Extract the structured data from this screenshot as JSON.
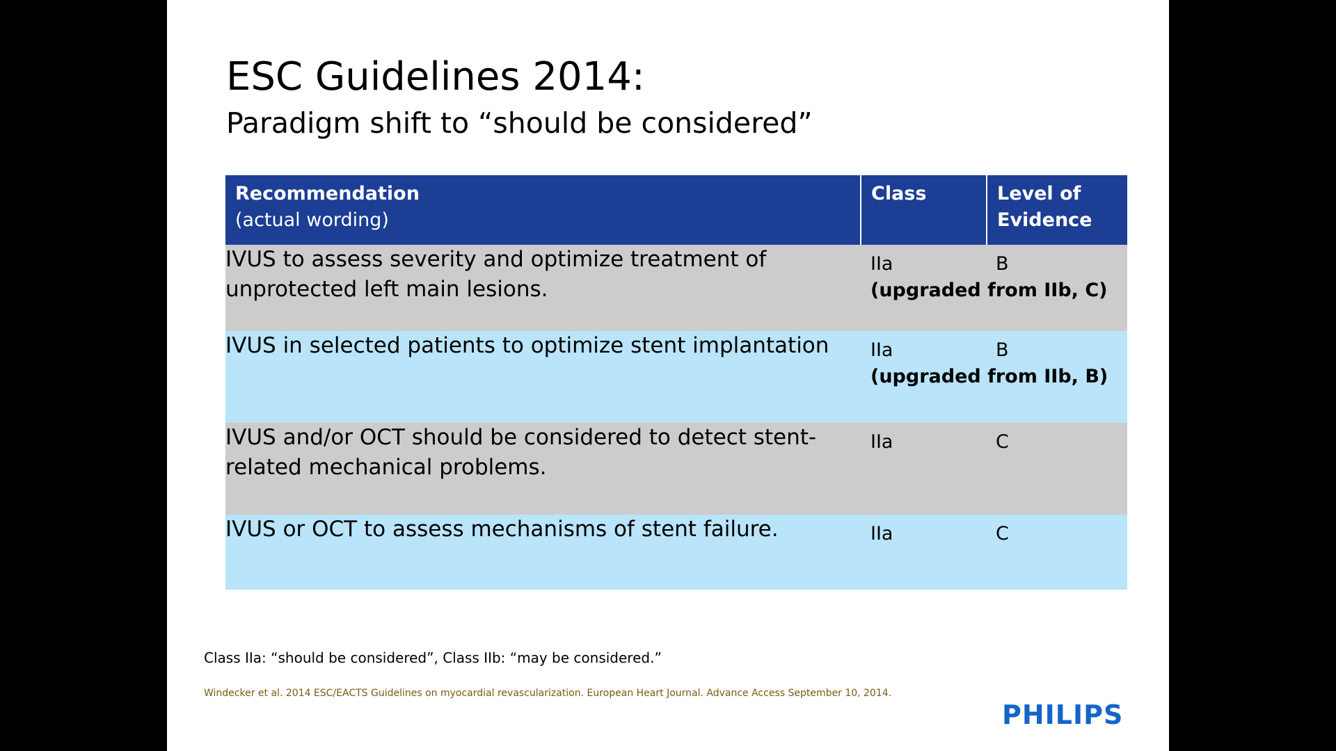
{
  "slide": {
    "title": "ESC Guidelines 2014:",
    "subtitle": "Paradigm shift to “should be considered”"
  },
  "table": {
    "headers": {
      "recommendation": "Recommendation",
      "recommendation_sub": "(actual wording)",
      "class": "Class",
      "level": "Level of Evidence"
    },
    "rows": [
      {
        "recommendation": "IVUS to assess severity and optimize treatment of unprotected left main lesions.",
        "class": "IIa",
        "level": "B",
        "note": "(upgraded from IIb, C)"
      },
      {
        "recommendation": "IVUS in selected patients to optimize stent implantation",
        "class": "IIa",
        "level": "B",
        "note": "(upgraded from IIb, B)"
      },
      {
        "recommendation": "IVUS and/or OCT should be considered to detect stent-related mechanical problems.",
        "class": "IIa",
        "level": "C",
        "note": ""
      },
      {
        "recommendation": "IVUS or OCT to assess mechanisms of stent failure.",
        "class": "IIa",
        "level": "C",
        "note": ""
      }
    ]
  },
  "footnote": "Class IIa: “should be considered”, Class IIb: “may be considered.”",
  "citation": "Windecker et al. 2014 ESC/EACTS Guidelines on myocardial revascularization. European Heart Journal. Advance Access September 10, 2014.",
  "logo": {
    "text": "PHILIPS",
    "color": "#1565c9"
  },
  "colors": {
    "header_bg": "#1c3e94",
    "row_gray": "#cccccc",
    "row_blue": "#b9e4fa"
  }
}
